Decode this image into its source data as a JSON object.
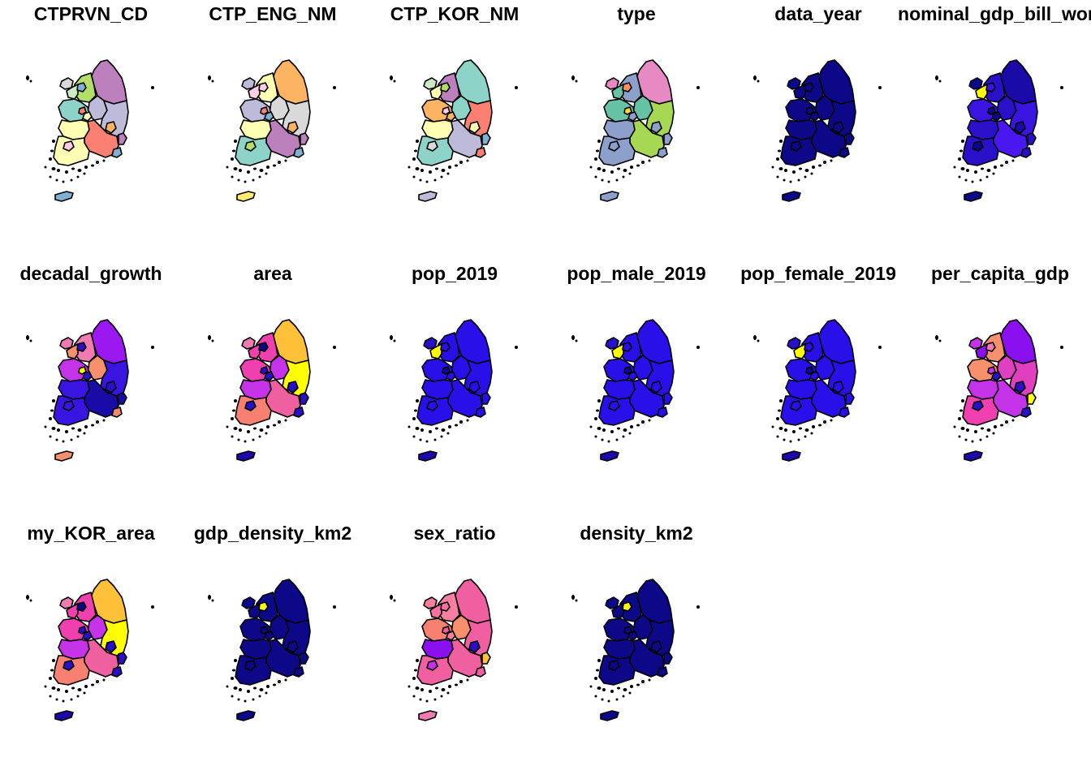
{
  "panels": [
    {
      "title": "CTPRVN_CD",
      "colors": {
        "inc": "#d9d9d9",
        "gw": "#bc80bd",
        "ic": "#b3de69",
        "sl": "#80b1d3",
        "gg": "#ccebc5",
        "cb": "#bebada",
        "cn": "#8dd3c7",
        "dj": "#ffffb3",
        "sj": "#fb8072",
        "gb": "#bebada",
        "dg": "#fdb462",
        "jb": "#ffffb3",
        "gj": "#fccde5",
        "gn": "#fb8072",
        "us": "#bc80bd",
        "jn": "#ffffb3",
        "bs": "#80b1d3",
        "jj": "#80b1d3"
      }
    },
    {
      "title": "CTP_ENG_NM",
      "colors": {
        "inc": "#bebada",
        "gw": "#fdb462",
        "ic": "#ffffb3",
        "sl": "#fccde5",
        "gg": "#fccde5",
        "cb": "#d9d9d9",
        "cn": "#bebada",
        "dj": "#80b1d3",
        "sj": "#fb8072",
        "gb": "#d9d9d9",
        "dg": "#fdb462",
        "jb": "#ffffb3",
        "gj": "#b3de69",
        "gn": "#bc80bd",
        "us": "#bc80bd",
        "jn": "#8dd3c7",
        "bs": "#80b1d3",
        "jj": "#ffed6f"
      }
    },
    {
      "title": "CTP_KOR_NM",
      "colors": {
        "inc": "#ccebc5",
        "gw": "#8dd3c7",
        "ic": "#bc80bd",
        "sl": "#b3de69",
        "gg": "#ffffb3",
        "cb": "#8dd3c7",
        "cn": "#fdb462",
        "dj": "#fdb462",
        "sj": "#fccde5",
        "gb": "#fb8072",
        "dg": "#ffffb3",
        "jb": "#ffffb3",
        "gj": "#d9d9d9",
        "gn": "#bebada",
        "us": "#80b1d3",
        "jn": "#8dd3c7",
        "bs": "#fb8072",
        "jj": "#bebada"
      }
    },
    {
      "title": "type",
      "colors": {
        "inc": "#e78ac3",
        "gw": "#e78ac3",
        "ic": "#8da0cb",
        "sl": "#fc8d62",
        "gg": "#66c2a5",
        "cb": "#66c2a5",
        "cn": "#66c2a5",
        "dj": "#8da0cb",
        "sj": "#ffd92f",
        "gb": "#a6d854",
        "dg": "#8da0cb",
        "jb": "#8da0cb",
        "gj": "#8da0cb",
        "gn": "#a6d854",
        "us": "#8da0cb",
        "jn": "#8da0cb",
        "bs": "#8da0cb",
        "jj": "#8da0cb"
      }
    },
    {
      "title": "data_year",
      "colors": {
        "inc": "#0d0887",
        "gw": "#0d0887",
        "ic": "#0d0887",
        "sl": "#0d0887",
        "gg": "#0d0887",
        "cb": "#0d0887",
        "cn": "#0d0887",
        "dj": "#0d0887",
        "sj": "#0d0887",
        "gb": "#0d0887",
        "dg": "#0d0887",
        "jb": "#0d0887",
        "gj": "#0d0887",
        "gn": "#0d0887",
        "us": "#0d0887",
        "jn": "#0d0887",
        "bs": "#0d0887",
        "jj": "#0d0887"
      }
    },
    {
      "title": "nominal_gdp_bill_won",
      "clipLeft": true,
      "colors": {
        "inc": "#0d0887",
        "gw": "#1a0aa8",
        "ic": "#2a10c8",
        "sl": "#3a14e0",
        "gg": "#ffff00",
        "cb": "#2a10c8",
        "cn": "#3a14e0",
        "dj": "#0d0887",
        "sj": "#0d0887",
        "gb": "#3a14e0",
        "dg": "#1a0aa8",
        "jb": "#2a10c8",
        "gj": "#0d0887",
        "gn": "#4a17f0",
        "us": "#2a10c8",
        "jn": "#2a10c8",
        "bs": "#2a10c8",
        "jj": "#0d0887"
      }
    },
    {
      "title": "decadal_growth",
      "colors": {
        "inc": "#f07bb0",
        "gw": "#9b18f0",
        "ic": "#f07bb0",
        "sl": "#2a10c8",
        "gg": "#f8906e",
        "cb": "#f8906e",
        "cn": "#c433e8",
        "dj": "#2a10c8",
        "sj": "#ffff00",
        "gb": "#3a14e0",
        "dg": "#2a10c8",
        "jb": "#3a14e0",
        "gj": "#3a14e0",
        "gn": "#1a0aa8",
        "us": "#1a0aa8",
        "jn": "#3a14e0",
        "bs": "#f08a6e",
        "jj": "#f8906e"
      }
    },
    {
      "title": "area",
      "colors": {
        "inc": "#f07bb0",
        "gw": "#ffc03a",
        "ic": "#f040b0",
        "sl": "#0d0887",
        "gg": "#f040b0",
        "cb": "#c433e8",
        "cn": "#f040b0",
        "dj": "#2a10c8",
        "sj": "#2a10c8",
        "gb": "#ffff00",
        "dg": "#2a10c8",
        "jb": "#c433e8",
        "gj": "#2a10c8",
        "gn": "#f060a0",
        "us": "#2a10c8",
        "jn": "#f88070",
        "bs": "#2a10c8",
        "jj": "#1a0aa8"
      }
    },
    {
      "title": "pop_2019",
      "colors": {
        "inc": "#2a10c8",
        "gw": "#2a10e8",
        "ic": "#2a10e8",
        "sl": "#2a10e8",
        "gg": "#ffff00",
        "cb": "#2a10e8",
        "cn": "#2a10e8",
        "dj": "#2a10e8",
        "sj": "#0d0887",
        "gb": "#2a10e8",
        "dg": "#2a10e8",
        "jb": "#2a10e8",
        "gj": "#2a10e8",
        "gn": "#2a10e8",
        "us": "#2a10e8",
        "jn": "#2a10e8",
        "bs": "#2a10e8",
        "jj": "#1a0aa8"
      }
    },
    {
      "title": "pop_male_2019",
      "colors": {
        "inc": "#2a10c8",
        "gw": "#2a10e8",
        "ic": "#2a10e8",
        "sl": "#2a10e8",
        "gg": "#ffff00",
        "cb": "#2a10e8",
        "cn": "#2a10e8",
        "dj": "#2a10e8",
        "sj": "#0d0887",
        "gb": "#2a10e8",
        "dg": "#2a10e8",
        "jb": "#2a10e8",
        "gj": "#2a10e8",
        "gn": "#2a10e8",
        "us": "#2a10e8",
        "jn": "#2a10e8",
        "bs": "#2a10e8",
        "jj": "#1a0aa8"
      }
    },
    {
      "title": "pop_female_2019",
      "colors": {
        "inc": "#2a10c8",
        "gw": "#2a10e8",
        "ic": "#2a10e8",
        "sl": "#2a10e8",
        "gg": "#ffff00",
        "cb": "#2a10e8",
        "cn": "#2a10e8",
        "dj": "#2a10e8",
        "sj": "#0d0887",
        "gb": "#2a10e8",
        "dg": "#2a10e8",
        "jb": "#2a10e8",
        "gj": "#2a10e8",
        "gn": "#2a10e8",
        "us": "#2a10e8",
        "jn": "#2a10e8",
        "bs": "#2a10e8",
        "jj": "#1a0aa8"
      }
    },
    {
      "title": "per_capita_gdp",
      "colors": {
        "inc": "#c433e8",
        "gw": "#8b10f0",
        "ic": "#f8906e",
        "sl": "#f07bb0",
        "gg": "#8b10f0",
        "cb": "#e040c0",
        "cn": "#f8906e",
        "dj": "#2a10c8",
        "sj": "#c433e8",
        "gb": "#e040c0",
        "dg": "#2a10c8",
        "jb": "#c433e8",
        "gj": "#2a10c8",
        "gn": "#c433e8",
        "us": "#ffff00",
        "jn": "#f040b0",
        "bs": "#2a10c8",
        "jj": "#1a0aa8"
      }
    },
    {
      "title": "my_KOR_area",
      "colors": {
        "inc": "#f07bb0",
        "gw": "#ffc03a",
        "ic": "#f040b0",
        "sl": "#0d0887",
        "gg": "#f040b0",
        "cb": "#c433e8",
        "cn": "#f040b0",
        "dj": "#2a10c8",
        "sj": "#2a10c8",
        "gb": "#ffff00",
        "dg": "#2a10c8",
        "jb": "#c433e8",
        "gj": "#2a10c8",
        "gn": "#f060a0",
        "us": "#2a10c8",
        "jn": "#f88070",
        "bs": "#2a10c8",
        "jj": "#1a0aa8"
      }
    },
    {
      "title": "gdp_density_km2",
      "colors": {
        "inc": "#0d0887",
        "gw": "#0d0887",
        "ic": "#0d0887",
        "sl": "#ffff00",
        "gg": "#0d0887",
        "cb": "#0d0887",
        "cn": "#0d0887",
        "dj": "#0d0887",
        "sj": "#0d0887",
        "gb": "#0d0887",
        "dg": "#0d0887",
        "jb": "#0d0887",
        "gj": "#0d0887",
        "gn": "#0d0887",
        "us": "#0d0887",
        "jn": "#0d0887",
        "bs": "#0d0887",
        "jj": "#0d0887"
      }
    },
    {
      "title": "sex_ratio",
      "colors": {
        "inc": "#f87fa0",
        "gw": "#f060a0",
        "ic": "#f87fa0",
        "sl": "#f870a0",
        "gg": "#f870a0",
        "cb": "#f8906e",
        "cn": "#f88070",
        "dj": "#f87fa0",
        "sj": "#f060a0",
        "gb": "#f060a0",
        "dg": "#2a10c8",
        "jb": "#8b10f0",
        "gj": "#c433e8",
        "gn": "#f060a0",
        "us": "#ffc03a",
        "jn": "#f060a0",
        "bs": "#f060a0",
        "jj": "#f07bb0"
      }
    },
    {
      "title": "density_km2",
      "colors": {
        "inc": "#0d0887",
        "gw": "#0d0887",
        "ic": "#0d0887",
        "sl": "#ffff00",
        "gg": "#0d0887",
        "cb": "#0d0887",
        "cn": "#0d0887",
        "dj": "#0d0887",
        "sj": "#0d0887",
        "gb": "#0d0887",
        "dg": "#0d0887",
        "jb": "#0d0887",
        "gj": "#0d0887",
        "gn": "#0d0887",
        "us": "#0d0887",
        "jn": "#0d0887",
        "bs": "#0d0887",
        "jj": "#0d0887"
      }
    }
  ]
}
